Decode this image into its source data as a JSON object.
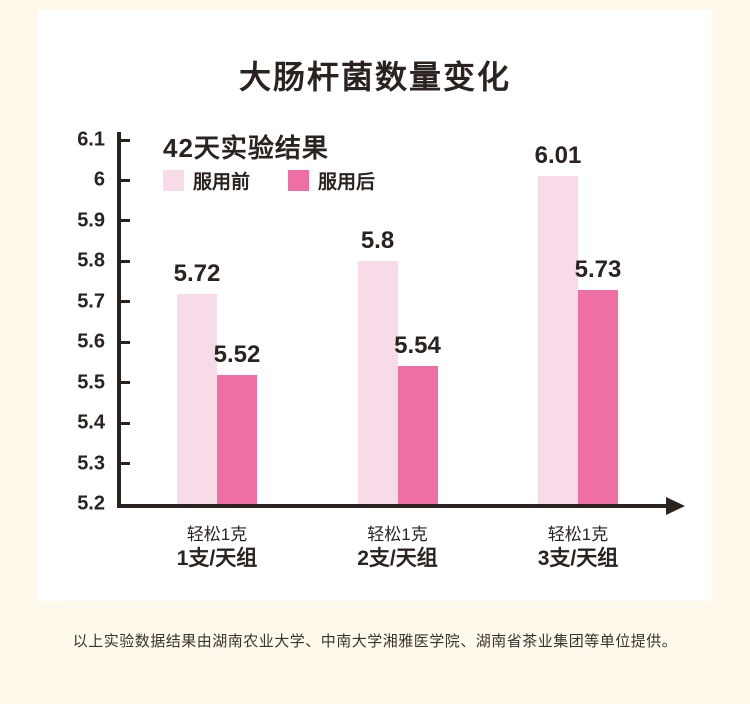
{
  "page": {
    "background_color": "#FFF9EC",
    "card_color": "#FFFFFF",
    "text_color": "#2B2320"
  },
  "chart_data": {
    "type": "bar",
    "title": "大肠杆菌数量变化",
    "subtitle": "42天实验结果",
    "grid": false,
    "legend_position": "top-left",
    "categories": [
      {
        "line1": "轻松1克",
        "line2": "1支/天组"
      },
      {
        "line1": "轻松1克",
        "line2": "2支/天组"
      },
      {
        "line1": "轻松1克",
        "line2": "3支/天组"
      }
    ],
    "series": [
      {
        "name": "服用前",
        "color": "#F8DBE9",
        "values": [
          5.72,
          5.8,
          6.01
        ]
      },
      {
        "name": "服用后",
        "color": "#EE6FA4",
        "values": [
          5.52,
          5.54,
          5.73
        ]
      }
    ],
    "value_labels": [
      [
        "5.72",
        "5.8",
        "6.01"
      ],
      [
        "5.52",
        "5.54",
        "5.73"
      ]
    ],
    "y_axis": {
      "min": 5.2,
      "max": 6.1,
      "step": 0.1,
      "tick_labels": [
        "6.1",
        "6",
        "5.9",
        "5.8",
        "5.7",
        "5.6",
        "5.5",
        "5.4",
        "5.3",
        "5.2"
      ]
    },
    "axis_color": "#2B2320"
  },
  "footer": {
    "note": "以上实验数据结果由湖南农业大学、中南大学湘雅医学院、湖南省茶业集团等单位提供。"
  }
}
